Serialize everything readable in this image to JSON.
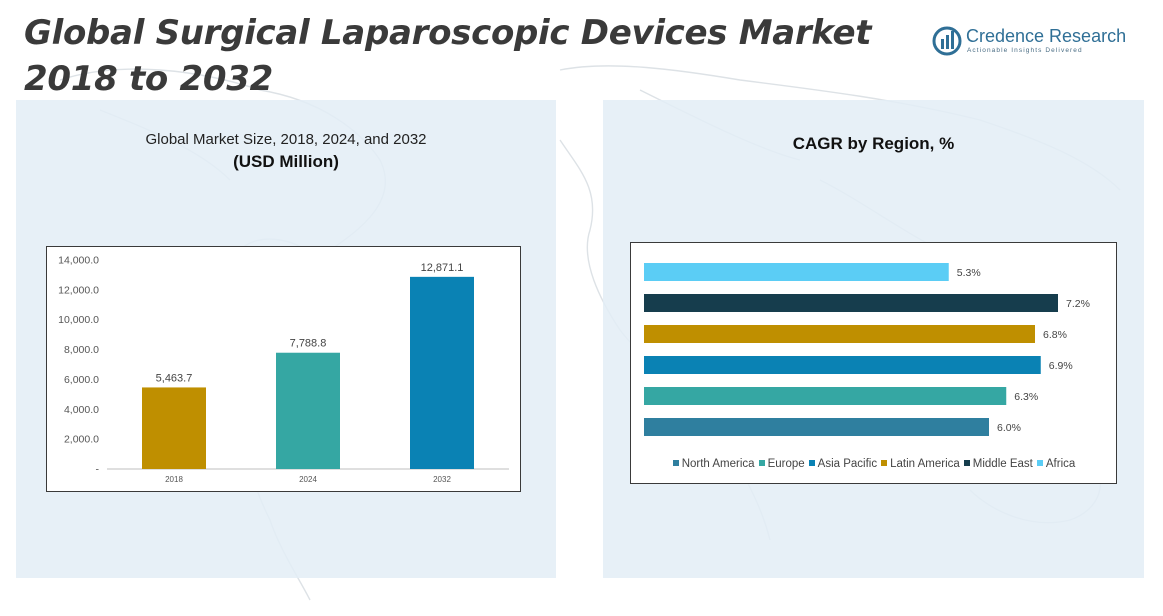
{
  "page": {
    "title_line1": "Global Surgical Laparoscopic Devices Market",
    "title_line2": "2018 to 2032"
  },
  "logo": {
    "name": "Credence Research",
    "tagline": "Actionable Insights Delivered",
    "icon": "credence-research-logo-icon"
  },
  "left_panel": {
    "title_line1": "Global Market Size, 2018, 2024, and 2032",
    "title_line2": "(USD Million)"
  },
  "right_panel": {
    "title": "CAGR by Region, %"
  },
  "chart_data": [
    {
      "type": "bar",
      "title": "Global Market Size, 2018, 2024, and 2032",
      "subtitle": "(USD Million)",
      "categories": [
        "2018",
        "2024",
        "2032"
      ],
      "values": [
        5463.7,
        7788.8,
        12871.1
      ],
      "value_labels": [
        "5,463.7",
        "7,788.8",
        "12,871.1"
      ],
      "bar_colors": [
        "#bf8f00",
        "#35a7a3",
        "#0a82b4"
      ],
      "ylim": [
        0,
        14000
      ],
      "yticks": [
        0,
        2000,
        4000,
        6000,
        8000,
        10000,
        12000,
        14000
      ],
      "ytick_labels": [
        "-",
        "2,000.0",
        "4,000.0",
        "6,000.0",
        "8,000.0",
        "10,000.0",
        "12,000.0",
        "14,000.0"
      ],
      "grid": false
    },
    {
      "type": "bar",
      "orientation": "horizontal",
      "title": "CAGR by Region, %",
      "series": [
        {
          "name": "North America",
          "value": 6.0,
          "label": "6.0%",
          "color": "#2f7f9f"
        },
        {
          "name": "Europe",
          "value": 6.3,
          "label": "6.3%",
          "color": "#35a7a3"
        },
        {
          "name": "Asia Pacific",
          "value": 6.9,
          "label": "6.9%",
          "color": "#0a82b4"
        },
        {
          "name": "Latin America",
          "value": 6.8,
          "label": "6.8%",
          "color": "#bf8f00"
        },
        {
          "name": "Middle East",
          "value": 7.2,
          "label": "7.2%",
          "color": "#163d4d"
        },
        {
          "name": "Africa",
          "value": 5.3,
          "label": "5.3%",
          "color": "#5bcdf5"
        }
      ],
      "xlim": [
        0,
        7.2
      ],
      "legend_position": "bottom",
      "grid": false
    }
  ]
}
